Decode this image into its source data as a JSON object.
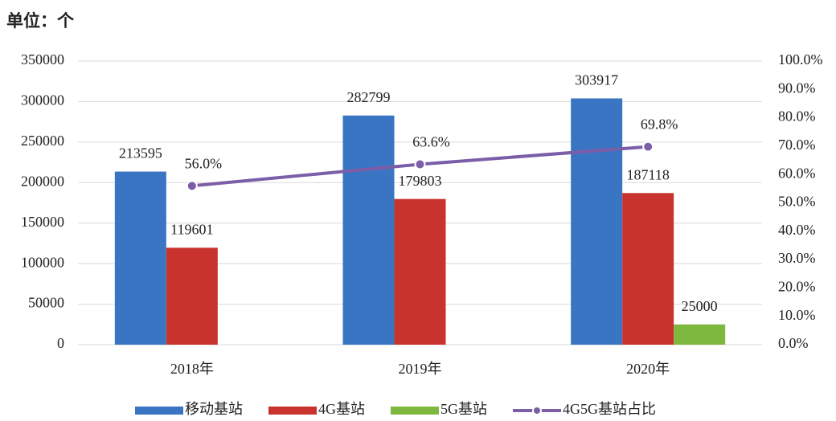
{
  "chart_data": {
    "type": "bar",
    "title": "单位：个",
    "categories": [
      "2018年",
      "2019年",
      "2020年"
    ],
    "series": [
      {
        "name": "移动基站",
        "color": "#3a75c3",
        "values": [
          213595,
          282799,
          303917
        ]
      },
      {
        "name": "4G基站",
        "color": "#c9332e",
        "values": [
          119601,
          179803,
          187118
        ]
      },
      {
        "name": "5G基站",
        "color": "#7fb83f",
        "values": [
          null,
          null,
          25000
        ]
      },
      {
        "name": "4G5G基站占比",
        "color": "#7b5ea7",
        "type": "line",
        "axis": "y2",
        "values": [
          56.0,
          63.6,
          69.8
        ],
        "value_labels": [
          "56.0%",
          "63.6%",
          "69.8%"
        ]
      }
    ],
    "ylim": [
      0,
      350000
    ],
    "yticks": [
      0,
      50000,
      100000,
      150000,
      200000,
      250000,
      300000,
      350000
    ],
    "y2lim": [
      0,
      100
    ],
    "y2ticks": [
      {
        "value": 0,
        "label": "0.0%"
      },
      {
        "value": 10,
        "label": "10.0%"
      },
      {
        "value": 20,
        "label": "20.0%"
      },
      {
        "value": 30,
        "label": "30.0%"
      },
      {
        "value": 40,
        "label": "40.0%"
      },
      {
        "value": 50,
        "label": "50.0%"
      },
      {
        "value": 60,
        "label": "60.0%"
      },
      {
        "value": 70,
        "label": "70.0%"
      },
      {
        "value": 80,
        "label": "80.0%"
      },
      {
        "value": 90,
        "label": "90.0%"
      },
      {
        "value": 100,
        "label": "100.0%"
      }
    ],
    "grid": true,
    "legend": "bottom"
  }
}
